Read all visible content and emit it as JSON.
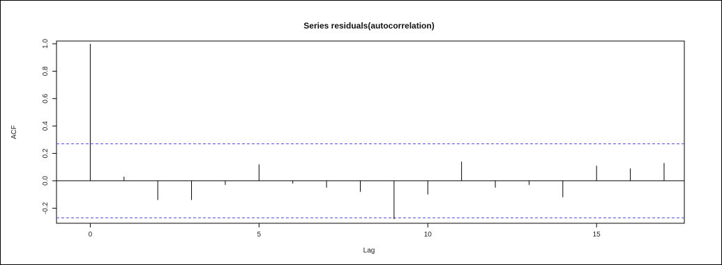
{
  "chart_data": {
    "type": "bar",
    "subtype": "acf-stem",
    "title": "Series  residuals(autocorrelation)",
    "xlabel": "Lag",
    "ylabel": "ACF",
    "xlim": [
      -1,
      17.6
    ],
    "ylim": [
      -0.31,
      1.02
    ],
    "x_ticks": [
      0,
      5,
      10,
      15
    ],
    "x_tick_labels": [
      "0",
      "5",
      "10",
      "15"
    ],
    "y_ticks": [
      -0.2,
      0.0,
      0.2,
      0.4,
      0.6,
      0.8,
      1.0
    ],
    "y_tick_labels": [
      "-0.2",
      "0.0",
      "0.2",
      "0.4",
      "0.6",
      "0.8",
      "1.0"
    ],
    "lags": [
      0,
      1,
      2,
      3,
      4,
      5,
      6,
      7,
      8,
      9,
      10,
      11,
      12,
      13,
      14,
      15,
      16,
      17
    ],
    "values": [
      1.0,
      0.03,
      -0.14,
      -0.14,
      -0.03,
      0.12,
      -0.02,
      -0.05,
      -0.08,
      -0.28,
      -0.1,
      0.14,
      -0.05,
      -0.03,
      -0.12,
      0.11,
      0.09,
      0.13
    ],
    "confidence_bound": 0.27,
    "confidence_color": "#4444ee",
    "zero_line": true,
    "grid": false
  }
}
